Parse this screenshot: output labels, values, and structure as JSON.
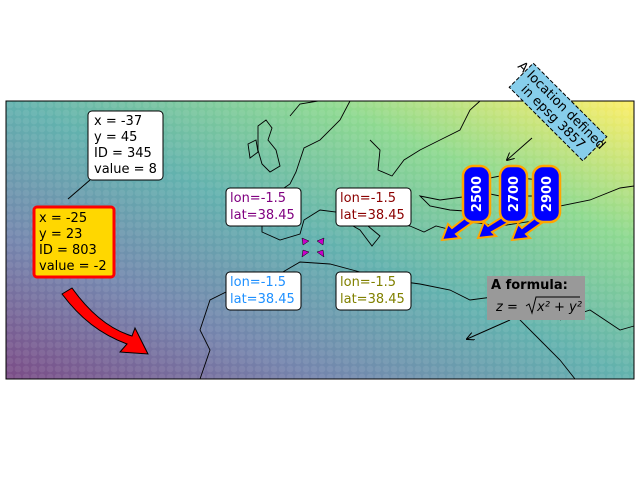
{
  "annotations": {
    "point_a": {
      "lines": [
        "x = -37",
        "y = 45",
        "ID = 345",
        "value = 8"
      ]
    },
    "point_b": {
      "lines": [
        "x = -25",
        "y = 23",
        "ID = 803",
        "value = -2"
      ]
    },
    "lonlat": [
      {
        "lines": [
          "lon=-1.5",
          "lat=38.45"
        ]
      },
      {
        "lines": [
          "lon=-1.5",
          "lat=38.45"
        ]
      },
      {
        "lines": [
          "lon=-1.5",
          "lat=38.45"
        ]
      },
      {
        "lines": [
          "lon=-1.5",
          "lat=38.45"
        ]
      }
    ],
    "epsg": {
      "lines": [
        "A location defined",
        "in epsg 3857"
      ]
    },
    "contours": [
      "2500",
      "2700",
      "2900"
    ],
    "formula": {
      "title": "A formula:",
      "lhs": "z =",
      "radicand": "x² + y²"
    }
  }
}
